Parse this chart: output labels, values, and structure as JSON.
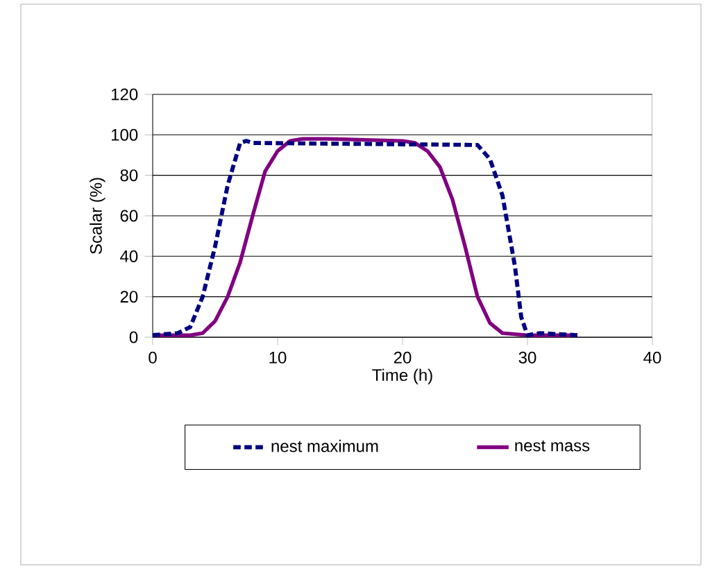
{
  "chart_data": {
    "type": "line",
    "xlabel": "Time (h)",
    "ylabel": "Scalar (%)",
    "xlim": [
      0,
      40
    ],
    "xticks": [
      0,
      10,
      20,
      30,
      40
    ],
    "ylim": [
      0,
      120
    ],
    "yticks": [
      0,
      20,
      40,
      60,
      80,
      100,
      120
    ],
    "grid": "y",
    "legend": "bottom",
    "marker": "none",
    "series": [
      {
        "name": "nest maximum",
        "color": "#000080",
        "line_style": "dashed",
        "x": [
          0,
          2,
          3,
          4,
          5,
          6,
          7,
          7.5,
          8,
          26,
          27,
          28,
          29,
          29.5,
          30,
          31,
          34
        ],
        "values": [
          1,
          2,
          5,
          20,
          45,
          75,
          96,
          97,
          96,
          95,
          88,
          70,
          35,
          10,
          1,
          2,
          1
        ]
      },
      {
        "name": "nest mass",
        "color": "#800080",
        "line_style": "solid",
        "x": [
          0,
          3,
          4,
          5,
          6,
          7,
          8,
          9,
          10,
          11,
          12,
          14,
          20,
          21,
          22,
          23,
          24,
          25,
          26,
          27,
          28,
          30,
          34
        ],
        "values": [
          1,
          1,
          2,
          8,
          20,
          37,
          60,
          82,
          92,
          97,
          98,
          98,
          97,
          96,
          92,
          84,
          68,
          45,
          20,
          7,
          2,
          1,
          1
        ]
      }
    ]
  }
}
